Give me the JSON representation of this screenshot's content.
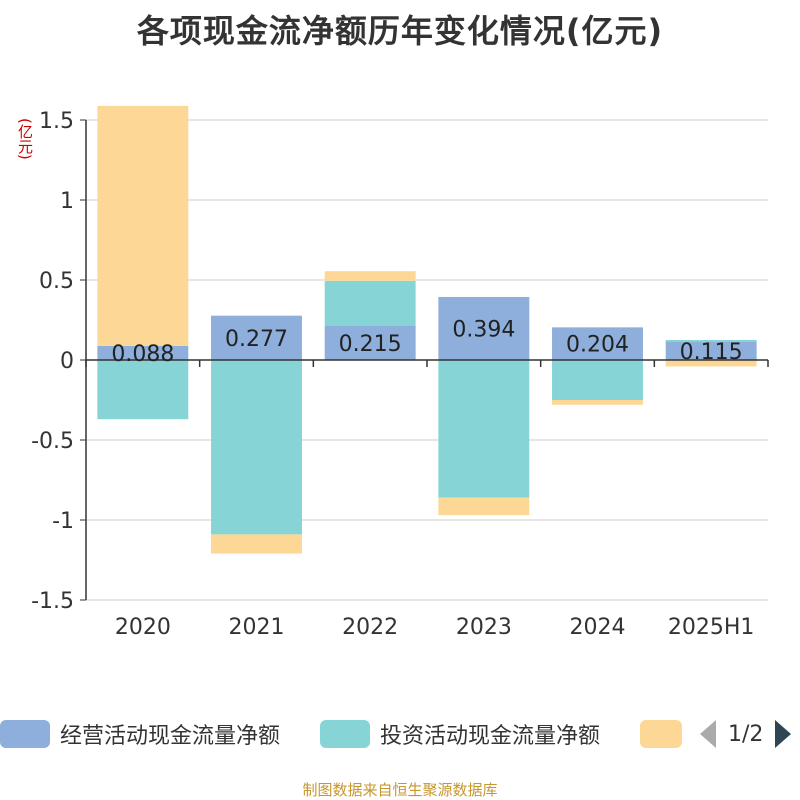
{
  "title": "各项现金流净额历年变化情况(亿元)",
  "footer": "制图数据来自恒生聚源数据库",
  "legend_page": "1/2",
  "chart_data": {
    "type": "bar",
    "stacked": true,
    "title": "各项现金流净额历年变化情况(亿元)",
    "ylabel": "(亿元)",
    "ylim": [
      -1.5,
      1.5
    ],
    "yticks": [
      -1.5,
      -1,
      -0.5,
      0,
      0.5,
      1,
      1.5
    ],
    "ytick_labels": [
      "-1.5",
      "-1",
      "-0.5",
      "0",
      "0.5",
      "1",
      "1.5"
    ],
    "grid": true,
    "legend_position": "bottom",
    "categories": [
      "2020",
      "2021",
      "2022",
      "2023",
      "2024",
      "2025H1"
    ],
    "series": [
      {
        "name": "经营活动现金流量净额",
        "color": "#8eaedb",
        "values": [
          0.088,
          0.277,
          0.215,
          0.394,
          0.204,
          0.115
        ],
        "labels": [
          "0.088",
          "0.277",
          "0.215",
          "0.394",
          "0.204",
          "0.115"
        ]
      },
      {
        "name": "投资活动现金流量净额",
        "color": "#86d4d6",
        "values": [
          -0.37,
          -1.09,
          0.28,
          -0.86,
          -0.25,
          0.01
        ]
      },
      {
        "name": "",
        "color": "#fdd795",
        "values": [
          1.5,
          -0.12,
          0.06,
          -0.11,
          -0.03,
          -0.04
        ]
      }
    ]
  }
}
